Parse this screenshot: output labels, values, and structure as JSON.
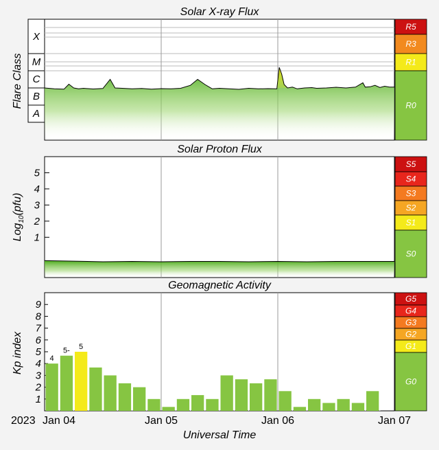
{
  "xaxis": {
    "title": "Universal Time",
    "year_label": "2023",
    "tick_labels": [
      "Jan 04",
      "Jan 05",
      "Jan 06",
      "Jan 07"
    ]
  },
  "chart_data": [
    {
      "type": "line",
      "title": "Solar X-ray Flux",
      "ylabel": "Flare Class",
      "y_ticks": [
        "X",
        "M",
        "C",
        "B",
        "A"
      ],
      "x_range": [
        "2023-01-04 00:00",
        "2023-01-07 00:00"
      ],
      "series": [
        {
          "times_hours": [
            0,
            2,
            4,
            5,
            6,
            7,
            8,
            10,
            12,
            13.5,
            14.5,
            16,
            18,
            20,
            22,
            24,
            26,
            28,
            30,
            31.5,
            33,
            34.5,
            36,
            38,
            40,
            42,
            44,
            46,
            47.8,
            48.3,
            48.8,
            49.3,
            50,
            51,
            52,
            53.5,
            55,
            56,
            58,
            60,
            62,
            64,
            65.5,
            66,
            67,
            68,
            69,
            70,
            71,
            72
          ],
          "log_flux_wm2": [
            -6.0,
            -6.05,
            -6.07,
            -5.78,
            -6.0,
            -6.05,
            -6.02,
            -6.06,
            -6.03,
            -5.5,
            -6.0,
            -6.02,
            -6.05,
            -6.03,
            -6.07,
            -6.04,
            -6.05,
            -6.02,
            -5.85,
            -5.5,
            -5.8,
            -6.05,
            -6.02,
            -6.05,
            -6.08,
            -6.02,
            -6.05,
            -6.04,
            -6.05,
            -4.8,
            -5.2,
            -5.8,
            -6.0,
            -5.95,
            -6.05,
            -6.0,
            -5.98,
            -6.02,
            -6.0,
            -5.96,
            -6.0,
            -5.95,
            -5.7,
            -5.95,
            -5.93,
            -5.85,
            -5.97,
            -5.9,
            -5.95,
            -5.95
          ]
        }
      ],
      "scale": [
        {
          "label": "R5",
          "color": "#cc1111"
        },
        {
          "label": "R3",
          "color": "#f28a1f"
        },
        {
          "label": "R1",
          "color": "#f4ea1a"
        },
        {
          "label": "R0",
          "color": "#86c542"
        }
      ]
    },
    {
      "type": "line",
      "title": "Solar Proton Flux",
      "ylabel": "Log10(pfu)",
      "ylim": [
        -1.5,
        6
      ],
      "y_ticks": [
        1,
        2,
        3,
        4,
        5
      ],
      "x_range": [
        "2023-01-04 00:00",
        "2023-01-07 00:00"
      ],
      "series": [
        {
          "times_hours": [
            0,
            6,
            12,
            18,
            24,
            30,
            36,
            42,
            48,
            54,
            60,
            66,
            72
          ],
          "log_pfu": [
            -0.45,
            -0.48,
            -0.52,
            -0.5,
            -0.52,
            -0.5,
            -0.5,
            -0.52,
            -0.5,
            -0.52,
            -0.5,
            -0.5,
            -0.5
          ]
        }
      ],
      "scale": [
        {
          "label": "S5",
          "color": "#cc1111"
        },
        {
          "label": "S4",
          "color": "#e8261c"
        },
        {
          "label": "S3",
          "color": "#f47a20"
        },
        {
          "label": "S2",
          "color": "#f5a623"
        },
        {
          "label": "S1",
          "color": "#f4ea1a"
        },
        {
          "label": "S0",
          "color": "#86c542"
        }
      ]
    },
    {
      "type": "bar",
      "title": "Geomagnetic Activity",
      "ylabel": "Kp index",
      "ylim": [
        0,
        10
      ],
      "y_ticks": [
        1,
        2,
        3,
        4,
        5,
        6,
        7,
        8,
        9
      ],
      "x_range": [
        "2023-01-04 00:00",
        "2023-01-07 00:00"
      ],
      "values": [
        4.0,
        4.67,
        5.0,
        3.67,
        3.0,
        2.33,
        2.0,
        1.0,
        0.33,
        1.0,
        1.33,
        1.0,
        3.0,
        2.67,
        2.33,
        2.67,
        1.67,
        0.33,
        1.0,
        0.67,
        1.0,
        0.67,
        1.67
      ],
      "bar_colors": [
        "#86c542",
        "#86c542",
        "#f4ea1a",
        "#86c542",
        "#86c542",
        "#86c542",
        "#86c542",
        "#86c542",
        "#86c542",
        "#86c542",
        "#86c542",
        "#86c542",
        "#86c542",
        "#86c542",
        "#86c542",
        "#86c542",
        "#86c542",
        "#86c542",
        "#86c542",
        "#86c542",
        "#86c542",
        "#86c542",
        "#86c542"
      ],
      "value_labels": [
        "4",
        "5-",
        "5",
        "",
        "",
        "",
        "",
        "",
        "",
        "",
        "",
        "",
        "",
        "",
        "",
        "",
        "",
        "",
        "",
        "",
        "",
        "",
        ""
      ],
      "scale": [
        {
          "label": "G5",
          "color": "#cc1111"
        },
        {
          "label": "G4",
          "color": "#e8261c"
        },
        {
          "label": "G3",
          "color": "#f47a20"
        },
        {
          "label": "G2",
          "color": "#f5a623"
        },
        {
          "label": "G1",
          "color": "#f4ea1a"
        },
        {
          "label": "G0",
          "color": "#86c542"
        }
      ]
    }
  ]
}
